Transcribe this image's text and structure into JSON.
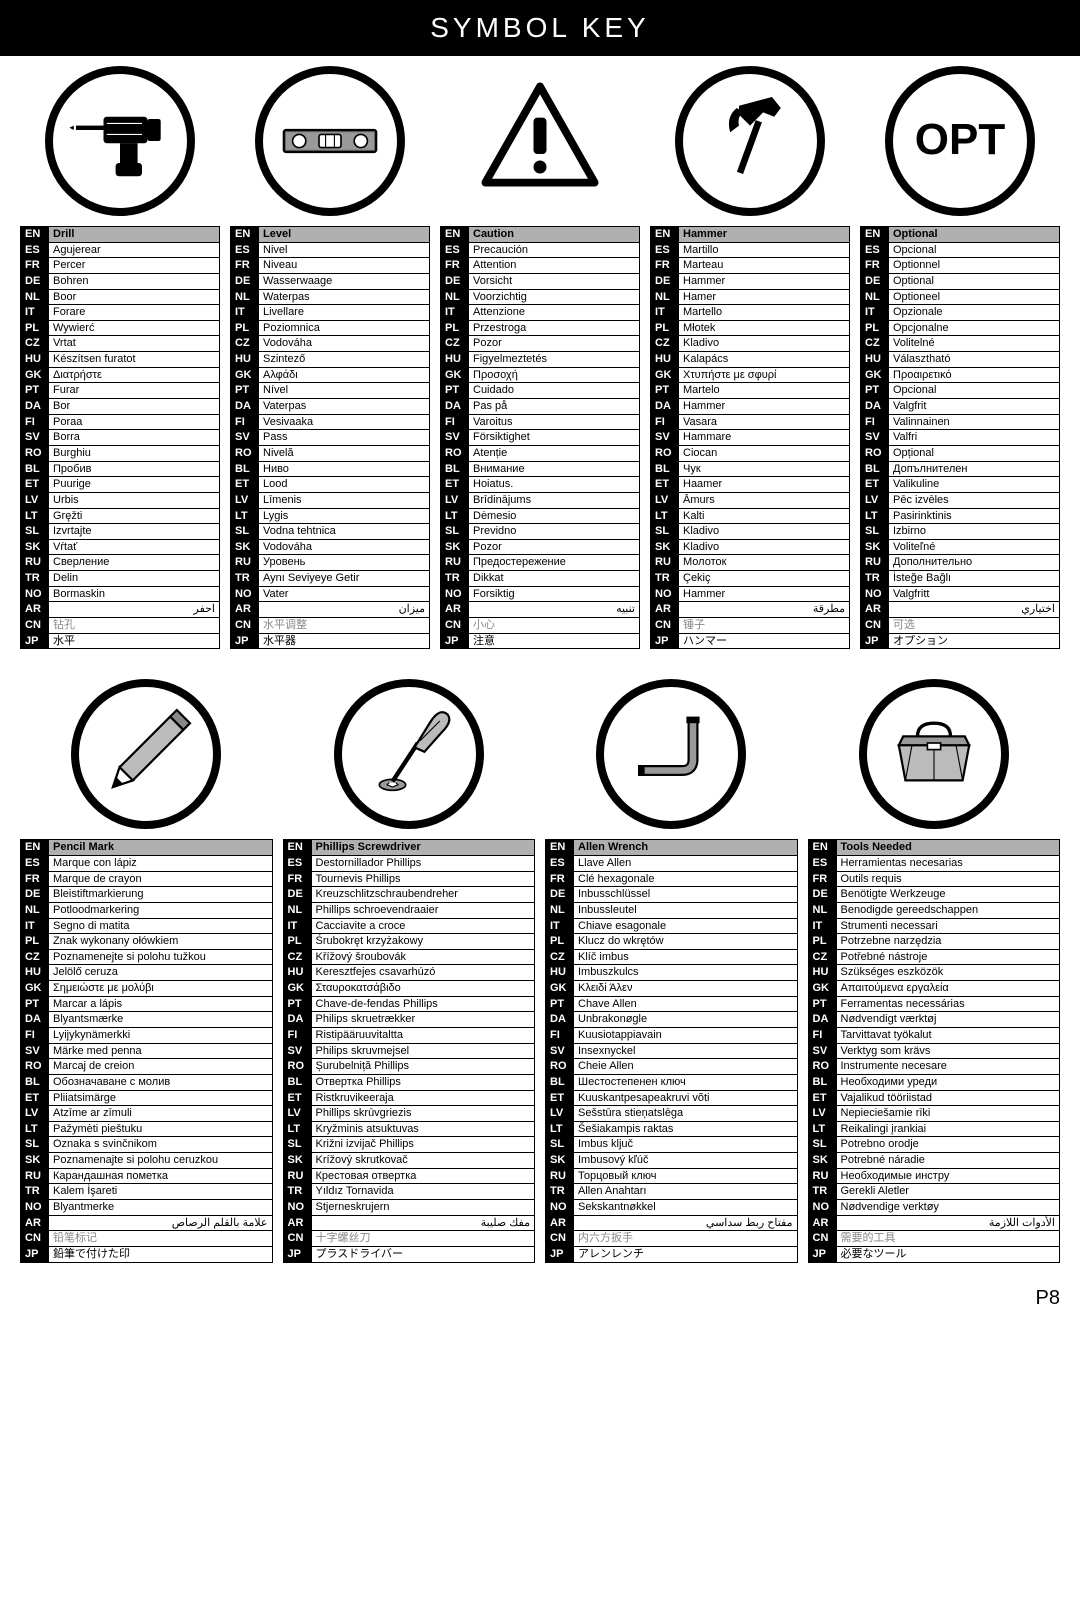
{
  "title": "SYMBOL KEY",
  "pagenum": "P8",
  "lang_codes": [
    "EN",
    "ES",
    "FR",
    "DE",
    "NL",
    "IT",
    "PL",
    "CZ",
    "HU",
    "GK",
    "PT",
    "DA",
    "FI",
    "SV",
    "RO",
    "BL",
    "ET",
    "LV",
    "LT",
    "SL",
    "SK",
    "RU",
    "TR",
    "NO",
    "AR",
    "CN",
    "JP"
  ],
  "symbols_top": [
    {
      "icon": "drill",
      "translations": [
        "Drill",
        "Agujerear",
        "Percer",
        "Bohren",
        "Boor",
        "Forare",
        "Wywierć",
        "Vrtat",
        "Készítsen furatot",
        "Διατρήστε",
        "Furar",
        "Bor",
        "Poraa",
        "Borra",
        "Burghiu",
        "Пробив",
        "Puurige",
        "Urbis",
        "Gręžti",
        "Izvrtajte",
        "Vŕtať",
        "Сверление",
        "Delin",
        "Bormaskin",
        "احفر",
        "钻孔",
        "水平"
      ]
    },
    {
      "icon": "level",
      "translations": [
        "Level",
        "Nivel",
        "Niveau",
        "Wasserwaage",
        "Waterpas",
        "Livellare",
        "Poziomnica",
        "Vodováha",
        "Szintező",
        "Αλφάδι",
        "Nível",
        "Vaterpas",
        "Vesivaaka",
        "Pass",
        "Nivelă",
        "Ниво",
        "Lood",
        "Līmenis",
        "Lygis",
        "Vodna tehtnica",
        "Vodováha",
        "Уровень",
        "Aynı Seviyeye Getir",
        "Vater",
        "ميزان",
        "水平调整",
        "水平器"
      ]
    },
    {
      "icon": "caution",
      "translations": [
        "Caution",
        "Precaución",
        "Attention",
        "Vorsicht",
        "Voorzichtig",
        "Attenzione",
        "Przestroga",
        "Pozor",
        "Figyelmeztetés",
        "Προσοχή",
        "Cuidado",
        "Pas på",
        "Varoitus",
        "Försiktighet",
        "Atenție",
        "Внимание",
        "Hoiatus.",
        "Brīdinājums",
        "Dėmesio",
        "Previdno",
        "Pozor",
        "Предостережение",
        "Dikkat",
        "Forsiktig",
        "تنبيه",
        "小心",
        "注意"
      ]
    },
    {
      "icon": "hammer",
      "translations": [
        "Hammer",
        "Martillo",
        "Marteau",
        "Hammer",
        "Hamer",
        "Martello",
        "Młotek",
        "Kladivo",
        "Kalapács",
        "Χτυπήστε με σφυρί",
        "Martelo",
        "Hammer",
        "Vasara",
        "Hammare",
        "Ciocan",
        "Чук",
        "Haamer",
        "Āmurs",
        "Kalti",
        "Kladivo",
        "Kladivo",
        "Молоток",
        "Çekiç",
        "Hammer",
        "مطرقة",
        "锤子",
        "ハンマー"
      ]
    },
    {
      "icon": "opt",
      "translations": [
        "Optional",
        "Opcional",
        "Optionnel",
        "Optional",
        "Optioneel",
        "Opzionale",
        "Opcjonalne",
        "Volitelné",
        "Választható",
        "Προαιρετικό",
        "Opcional",
        "Valgfrit",
        "Valinnainen",
        "Valfri",
        "Opțional",
        "Допълнителен",
        "Valikuline",
        "Pēc izvēles",
        "Pasirinktinis",
        "Izbirno",
        "Voliteľné",
        "Дополнительно",
        "İsteğe Bağlı",
        "Valgfritt",
        "اختياري",
        "可选",
        "オプション"
      ]
    }
  ],
  "symbols_bottom": [
    {
      "icon": "pencil",
      "translations": [
        "Pencil Mark",
        "Marque con lápiz",
        "Marque de crayon",
        "Bleistiftmarkierung",
        "Potloodmarkering",
        "Segno di matita",
        "Znak wykonany ołówkiem",
        "Poznamenejte si polohu tužkou",
        "Jelölő ceruza",
        "Σημειώστε με μολύβι",
        "Marcar a lápis",
        "Blyantsmærke",
        "Lyijykynämerkki",
        "Märke med penna",
        "Marcaj de creion",
        "Обозначаване с молив",
        "Pliiatsimärge",
        "Atzīme ar zīmuli",
        "Pažymėti pieštuku",
        "Oznaka s svinčnikom",
        "Poznamenajte si polohu ceruzkou",
        "Карандашная пометка",
        "Kalem İşareti",
        "Blyantmerke",
        "علامة بالقلم الرصاص",
        "铅笔标记",
        "鉛筆で付けた印"
      ]
    },
    {
      "icon": "phillips",
      "translations": [
        "Phillips Screwdriver",
        "Destornillador Phillips",
        "Tournevis Phillips",
        "Kreuzschlitzschraubendreher",
        "Phillips schroevendraaier",
        "Cacciavite a croce",
        "Śrubokręt krzyżakowy",
        "Křížový šroubovák",
        "Keresztfejes csavarhúzó",
        "Σταυροκατσάβιδο",
        "Chave-de-fendas Phillips",
        "Philips skruetrækker",
        "Ristipääruuvitaltta",
        "Philips skruvmejsel",
        "Șurubelniță Phillips",
        "Отвертка Phillips",
        "Ristkruvikeeraja",
        "Phillips skrūvgriezis",
        "Kryžminis atsuktuvas",
        "Križni izvijač Phillips",
        "Krížový skrutkovač",
        "Крестовая отвертка",
        "Yıldız Tornavida",
        "Stjerneskrujern",
        "مفك صليبة",
        "十字螺丝刀",
        "プラスドライバー"
      ]
    },
    {
      "icon": "allen",
      "translations": [
        "Allen Wrench",
        "Llave Allen",
        "Clé hexagonale",
        "Inbusschlüssel",
        "Inbussleutel",
        "Chiave esagonale",
        "Klucz do wkrętów",
        "Klíč imbus",
        "Imbuszkulcs",
        "Κλειδί Άλεν",
        "Chave Allen",
        "Unbrakonøgle",
        "Kuusiotappiavain",
        "Insexnyckel",
        "Cheie Allen",
        "Шестостепенен ключ",
        "Kuuskantpesapeakruvi võti",
        "Sešstūra stieņatslēga",
        "Šešiakampis raktas",
        "Imbus ključ",
        "Imbusový kľúč",
        "Торцовый ключ",
        "Allen Anahtarı",
        "Sekskantnøkkel",
        "مفتاح ربط سداسي",
        "内六方扳手",
        "アレンレンチ"
      ]
    },
    {
      "icon": "toolbox",
      "translations": [
        "Tools Needed",
        "Herramientas necesarias",
        "Outils requis",
        "Benötigte Werkzeuge",
        "Benodigde gereedschappen",
        "Strumenti necessari",
        "Potrzebne narzędzia",
        "Potřebné nástroje",
        "Szükséges eszközök",
        "Απαιτούμενα εργαλεία",
        "Ferramentas necessárias",
        "Nødvendigt værktøj",
        "Tarvittavat työkalut",
        "Verktyg som krävs",
        "Instrumente necesare",
        "Необходими уреди",
        "Vajalikud tööriistad",
        "Nepieciešamie rīki",
        "Reikalingi įrankiai",
        "Potrebno orodje",
        "Potrebné náradie",
        "Необходимые инстру",
        "Gerekli Aletler",
        "Nødvendige verktøy",
        "الأدوات اللازمة",
        "需要的工具",
        "必要なツール"
      ]
    }
  ]
}
